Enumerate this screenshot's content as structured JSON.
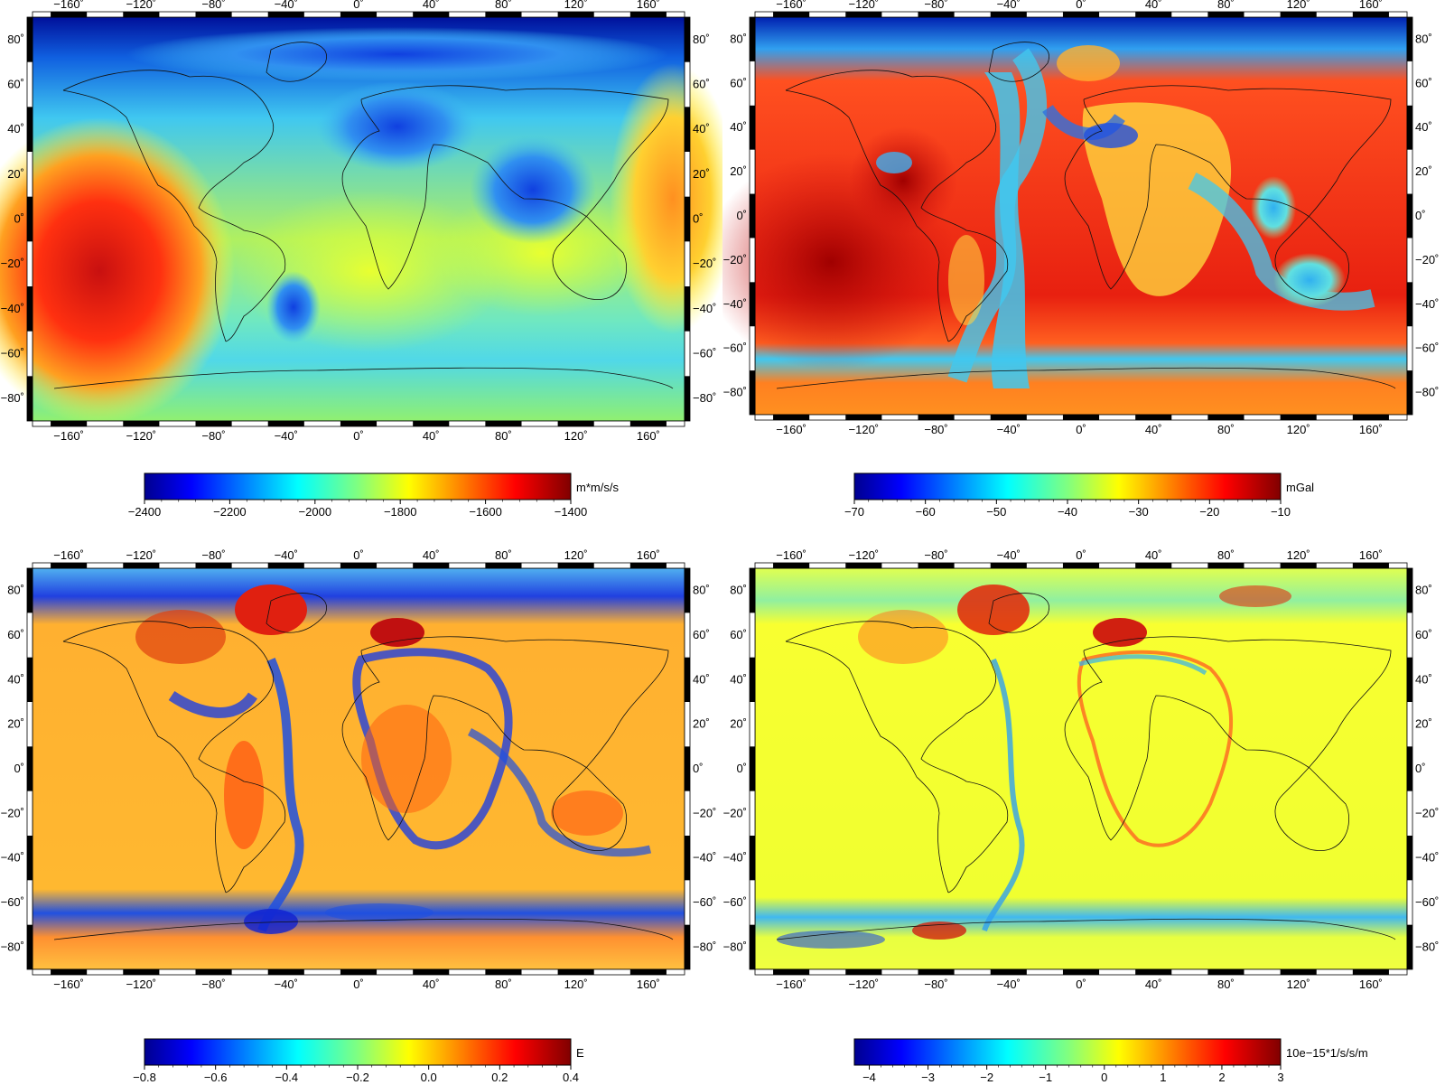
{
  "axes": {
    "lon_labels": [
      "−160˚",
      "−120˚",
      "−80˚",
      "−40˚",
      "0˚",
      "40˚",
      "80˚",
      "120˚",
      "160˚"
    ],
    "lat_labels": [
      "80˚",
      "60˚",
      "40˚",
      "20˚",
      "0˚",
      "−20˚",
      "−40˚",
      "−60˚",
      "−80˚"
    ]
  },
  "panels": [
    {
      "unit": "m*m/s/s",
      "colorbar_ticks": [
        "−2400",
        "−2200",
        "−2000",
        "−1800",
        "−1600",
        "−1400"
      ]
    },
    {
      "unit": "mGal",
      "colorbar_ticks": [
        "−70",
        "−60",
        "−50",
        "−40",
        "−30",
        "−20",
        "−10"
      ]
    },
    {
      "unit": "E",
      "colorbar_ticks": [
        "−0.8",
        "−0.6",
        "−0.4",
        "−0.2",
        "0.0",
        "0.2",
        "0.4"
      ]
    },
    {
      "unit": "10e−15*1/s/s/m",
      "colorbar_ticks": [
        "−4",
        "−3",
        "−2",
        "−1",
        "0",
        "1",
        "2",
        "3"
      ]
    }
  ]
}
